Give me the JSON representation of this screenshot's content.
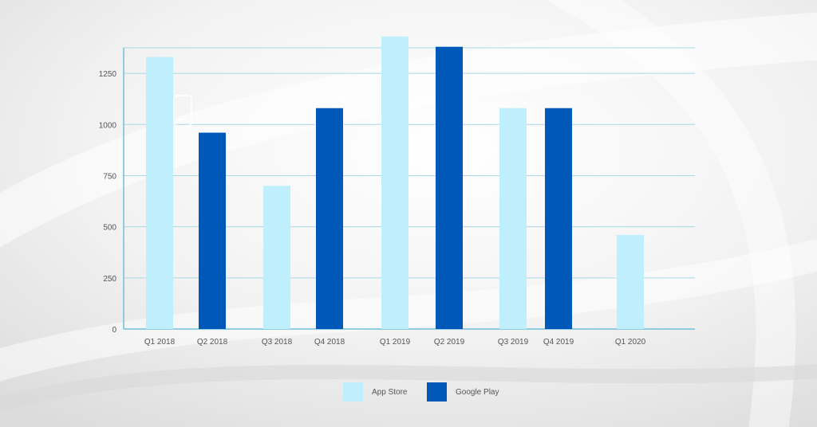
{
  "chart_data": {
    "type": "bar",
    "categories": [
      "Q1 2018",
      "Q2 2018",
      "Q3 2018",
      "Q4 2018",
      "Q1 2019",
      "Q2 2019",
      "Q3 2019",
      "Q4 2019",
      "Q1 2020"
    ],
    "series": [
      {
        "name": "App Store",
        "color": "#bfeffc",
        "values": [
          1330,
          null,
          700,
          null,
          1430,
          null,
          1080,
          null,
          460
        ]
      },
      {
        "name": "Google Play",
        "color": "#0059b8",
        "values": [
          null,
          960,
          null,
          1080,
          null,
          1380,
          null,
          1080,
          null
        ]
      }
    ],
    "yticks": [
      "0",
      "250",
      "500",
      "750",
      "1000",
      "1250"
    ],
    "ylim": [
      0,
      1375
    ],
    "grid": true,
    "legend_position": "bottom-center",
    "title": "",
    "xlabel": "",
    "ylabel": ""
  }
}
